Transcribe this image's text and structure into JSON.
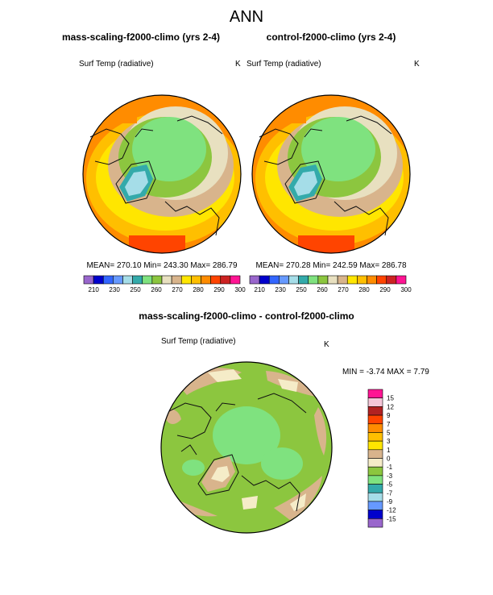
{
  "figure": {
    "title": "ANN",
    "left_panel_title": "mass-scaling-f2000-climo (yrs 2-4)",
    "right_panel_title": "control-f2000-climo (yrs 2-4)",
    "diff_panel_title": "mass-scaling-f2000-climo - control-f2000-climo"
  },
  "chart_data": [
    {
      "type": "heatmap",
      "projection": "north polar stereographic",
      "title": "mass-scaling-f2000-climo (yrs 2-4)",
      "variable": "Surf Temp (radiative)",
      "units": "K",
      "stats_text": "MEAN= 270.10  Min= 243.30  Max= 286.79",
      "stats": {
        "mean": 270.1,
        "min": 243.3,
        "max": 286.79
      },
      "colorbar": {
        "orientation": "horizontal",
        "tick_labels": [
          "210",
          "230",
          "250",
          "260",
          "270",
          "280",
          "290",
          "300"
        ],
        "levels": [
          210,
          220,
          230,
          240,
          250,
          255,
          260,
          265,
          270,
          275,
          280,
          285,
          290,
          295,
          300
        ],
        "colors": [
          "#9966cc",
          "#0000cc",
          "#3366ff",
          "#6699ff",
          "#a5dde8",
          "#33aaaa",
          "#7fe27f",
          "#8cc63f",
          "#e8e0c0",
          "#d8b48c",
          "#ffe600",
          "#ffbf00",
          "#ff8c00",
          "#ff4400",
          "#cc2222",
          "#ff1493"
        ]
      }
    },
    {
      "type": "heatmap",
      "projection": "north polar stereographic",
      "title": "control-f2000-climo (yrs 2-4)",
      "variable": "Surf Temp (radiative)",
      "units": "K",
      "stats_text": "MEAN= 270.28  Min= 242.59  Max= 286.78",
      "stats": {
        "mean": 270.28,
        "min": 242.59,
        "max": 286.78
      },
      "colorbar": {
        "orientation": "horizontal",
        "tick_labels": [
          "210",
          "230",
          "250",
          "260",
          "270",
          "280",
          "290",
          "300"
        ],
        "levels": [
          210,
          220,
          230,
          240,
          250,
          255,
          260,
          265,
          270,
          275,
          280,
          285,
          290,
          295,
          300
        ],
        "colors": [
          "#9966cc",
          "#0000cc",
          "#3366ff",
          "#6699ff",
          "#a5dde8",
          "#33aaaa",
          "#7fe27f",
          "#8cc63f",
          "#e8e0c0",
          "#d8b48c",
          "#ffe600",
          "#ffbf00",
          "#ff8c00",
          "#ff4400",
          "#cc2222",
          "#ff1493"
        ]
      }
    },
    {
      "type": "heatmap",
      "projection": "north polar stereographic",
      "title": "mass-scaling-f2000-climo - control-f2000-climo",
      "variable": "Surf Temp (radiative)",
      "units": "K",
      "stats_text": "MIN =  -3.74  MAX =   7.79",
      "stats": {
        "min": -3.74,
        "max": 7.79
      },
      "colorbar": {
        "orientation": "vertical",
        "tick_labels": [
          "15",
          "12",
          "9",
          "7",
          "5",
          "3",
          "1",
          "0",
          "-1",
          "-3",
          "-5",
          "-7",
          "-9",
          "-12",
          "-15"
        ],
        "colors": [
          "#ff1493",
          "#f4c6d8",
          "#b22222",
          "#ff4400",
          "#ff8c00",
          "#ffbf00",
          "#ffe600",
          "#d8b48c",
          "#f5ecc8",
          "#8cc63f",
          "#7fe27f",
          "#33aaaa",
          "#a5dde8",
          "#6699ff",
          "#0000cc",
          "#9966cc"
        ]
      }
    }
  ]
}
